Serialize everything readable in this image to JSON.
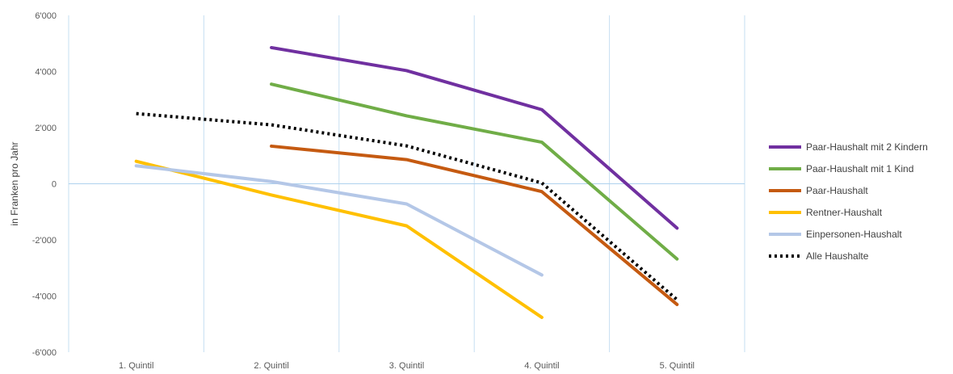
{
  "chart_data": {
    "type": "line",
    "ylabel": "in Franken pro Jahr",
    "categories": [
      "1. Quintil",
      "2. Quintil",
      "3. Quintil",
      "4. Quintil",
      "5. Quintil"
    ],
    "ylim": [
      -6000,
      6000
    ],
    "yticks": [
      6000,
      4000,
      2000,
      0,
      -2000,
      -4000,
      -6000
    ],
    "ytick_labels": [
      "6'000",
      "4'000",
      "2'000",
      "0",
      "-2'000",
      "-4'000",
      "-6'000"
    ],
    "grid": true,
    "legend_position": "right",
    "series": [
      {
        "name": "Paar-Haushalt mit 2 Kindern",
        "color": "#7030a0",
        "style": "solid",
        "values": [
          null,
          4850,
          4030,
          2640,
          -1580
        ]
      },
      {
        "name": "Paar-Haushalt mit 1 Kind",
        "color": "#70ad47",
        "style": "solid",
        "values": [
          null,
          3550,
          2420,
          1480,
          -2680
        ]
      },
      {
        "name": "Paar-Haushalt",
        "color": "#c55a11",
        "style": "solid",
        "values": [
          null,
          1340,
          860,
          -280,
          -4300
        ]
      },
      {
        "name": "Rentner-Haushalt",
        "color": "#ffc000",
        "style": "solid",
        "values": [
          800,
          -400,
          -1500,
          -4760,
          null
        ]
      },
      {
        "name": "Einpersonen-Haushalt",
        "color": "#b4c7e7",
        "style": "solid",
        "values": [
          640,
          80,
          -720,
          -3250,
          null
        ]
      },
      {
        "name": "Alle Haushalte",
        "color": "#000000",
        "style": "dotted",
        "values": [
          2500,
          2100,
          1350,
          30,
          -4130
        ]
      }
    ]
  }
}
